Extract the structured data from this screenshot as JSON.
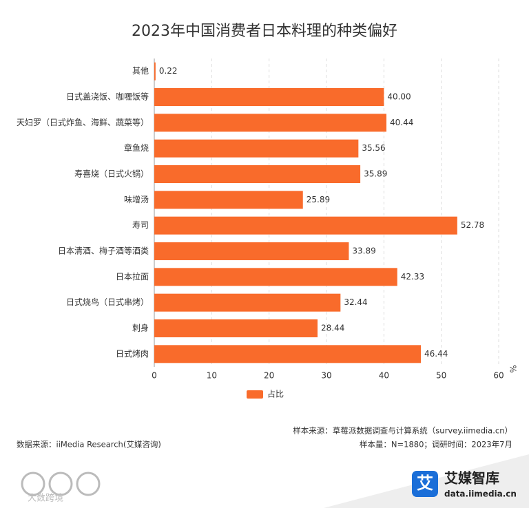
{
  "chart_data": {
    "type": "barh",
    "title": "2023年中国消费者日本料理的种类偏好",
    "categories": [
      "其他",
      "日式盖浇饭、咖喱饭等",
      "天妇罗（日式炸鱼、海鲜、蔬菜等）",
      "章鱼烧",
      "寿喜烧（日式火锅）",
      "味增汤",
      "寿司",
      "日本清酒、梅子酒等酒类",
      "日本拉面",
      "日式烧鸟（日式串烤）",
      "刺身",
      "日式烤肉"
    ],
    "series": [
      {
        "name": "占比",
        "color": "#f96b2b",
        "values": [
          0.22,
          40.0,
          40.44,
          35.56,
          35.89,
          25.89,
          52.78,
          33.89,
          42.33,
          32.44,
          28.44,
          46.44
        ],
        "value_labels": [
          "0.22",
          "40.00",
          "40.44",
          "35.56",
          "35.89",
          "25.89",
          "52.78",
          "33.89",
          "42.33",
          "32.44",
          "28.44",
          "46.44"
        ]
      }
    ],
    "xlim": [
      0,
      60
    ],
    "xticks": [
      0,
      10,
      20,
      30,
      40,
      50,
      60
    ],
    "x_unit": "%",
    "grid": true,
    "sample_source": "样本来源：草莓派数据调查与计算系统（survey.iimedia.cn）",
    "sample_info": "样本量：N=1880；调研时间：2023年7月",
    "data_source": "数据来源：iiMedia Research(艾媒咨询)",
    "brand": "艾媒智库",
    "brand_url": "data.iimedia.cn",
    "watermark": "大数跨境"
  }
}
